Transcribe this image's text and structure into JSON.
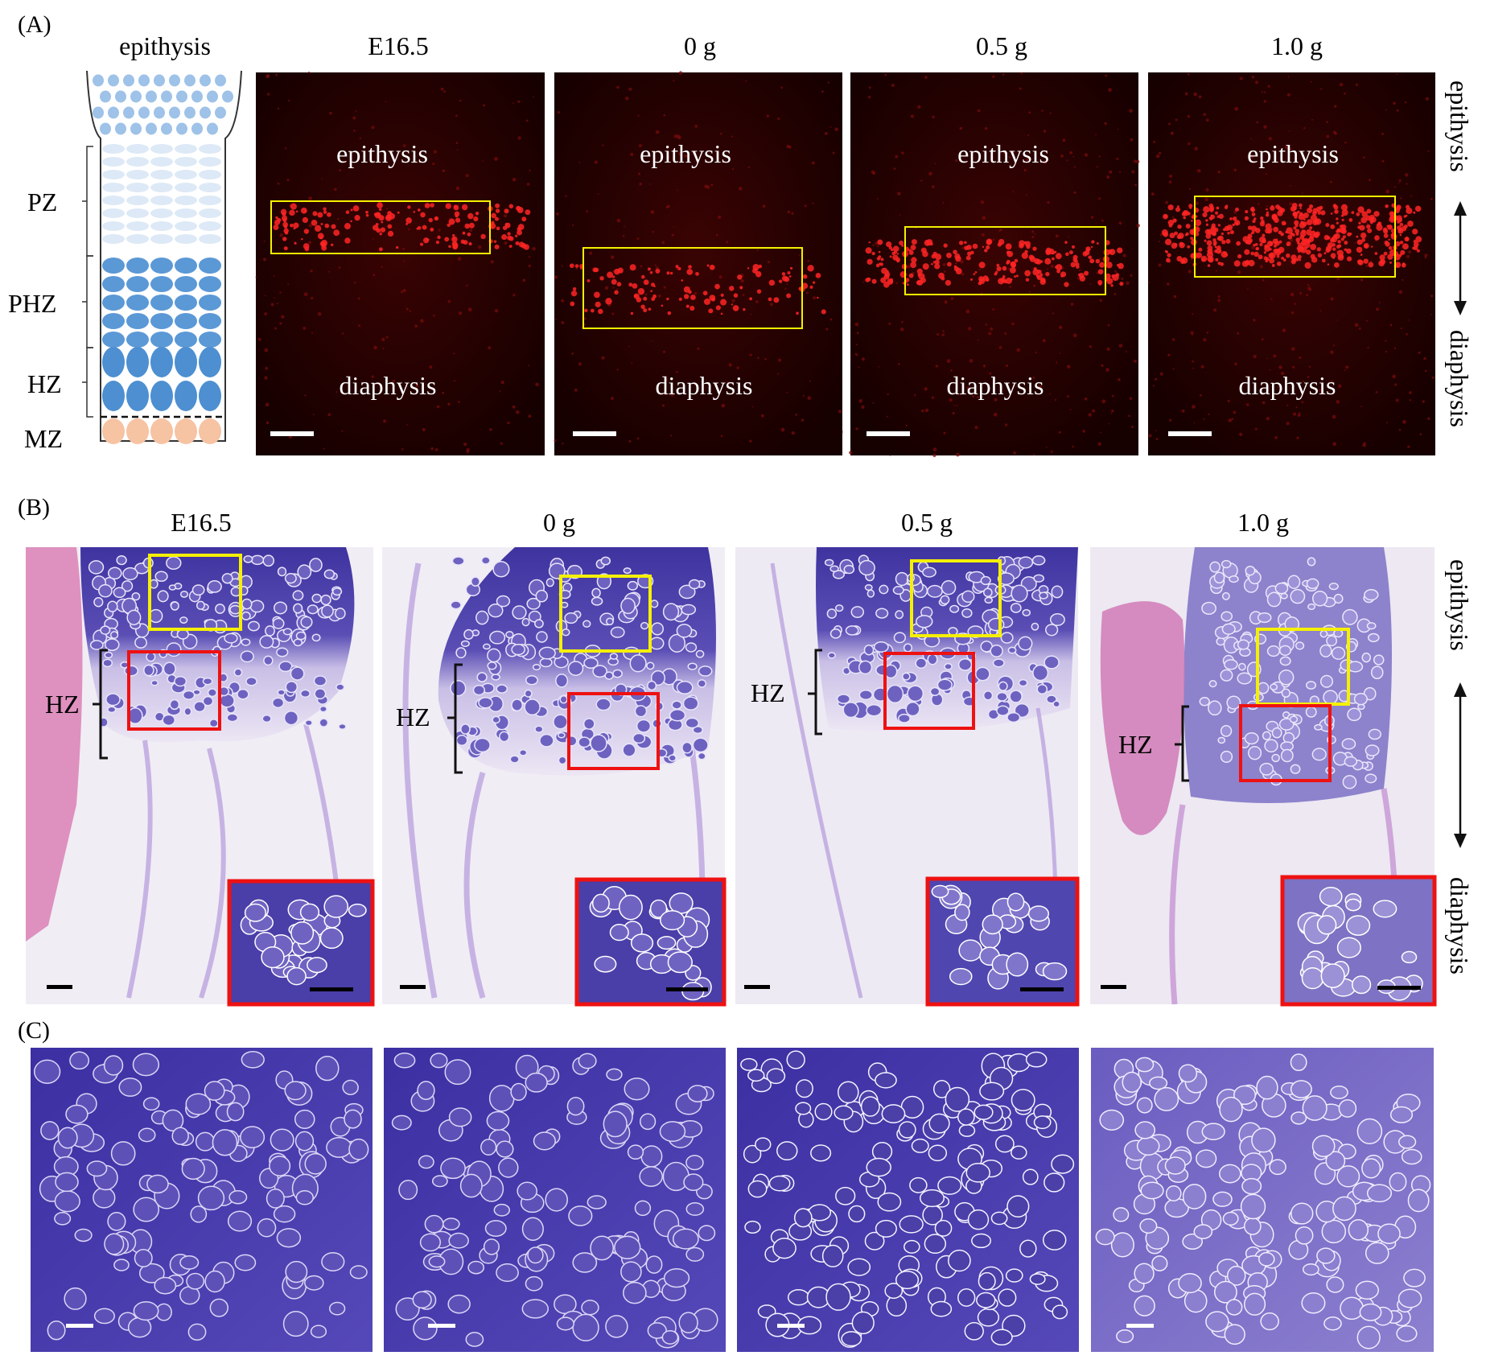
{
  "panels": {
    "a": {
      "label": "(A)",
      "schematic": {
        "title": "epithysis",
        "zones": [
          "PZ",
          "PHZ",
          "HZ",
          "MZ"
        ]
      },
      "images": [
        {
          "title": "E16.5",
          "top_label": "epithysis",
          "bottom_label": "diaphysis"
        },
        {
          "title": "0 g",
          "top_label": "epithysis",
          "bottom_label": "diaphysis"
        },
        {
          "title": "0.5 g",
          "top_label": "epithysis",
          "bottom_label": "diaphysis"
        },
        {
          "title": "1.0 g",
          "top_label": "epithysis",
          "bottom_label": "diaphysis"
        }
      ],
      "axis": {
        "top": "epithysis",
        "bottom": "diaphysis"
      }
    },
    "b": {
      "label": "(B)",
      "images": [
        {
          "title": "E16.5",
          "zone_label": "HZ"
        },
        {
          "title": "0 g",
          "zone_label": "HZ"
        },
        {
          "title": "0.5 g",
          "zone_label": "HZ"
        },
        {
          "title": "1.0 g",
          "zone_label": "HZ"
        }
      ],
      "axis": {
        "top": "epithysis",
        "bottom": "diaphysis"
      }
    },
    "c": {
      "label": "(C)",
      "image_count": 4
    }
  },
  "colors": {
    "fluorescence_bg": "#1d0000",
    "fluorescence_signal": "#ff2020",
    "roi_yellow": "#f5f000",
    "roi_red": "#ee1111",
    "stain_dark": "#4a3ea8",
    "stain_light": "#cfc6ee",
    "schematic_blue": "#5b98d6",
    "schematic_light": "#dde9f6",
    "schematic_mz": "#f6c3a3"
  }
}
